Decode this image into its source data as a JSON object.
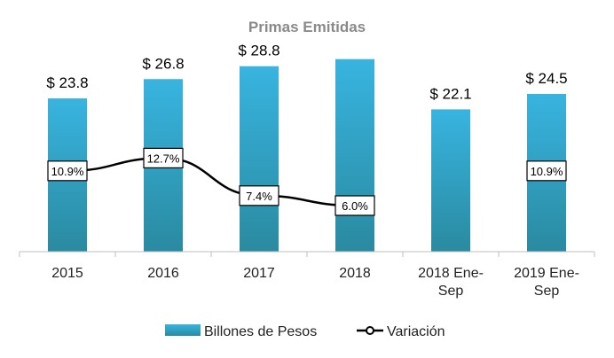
{
  "chart_data": {
    "type": "bar",
    "title": "Primas Emitidas",
    "categories": [
      "2015",
      "2016",
      "2017",
      "2018",
      "2018 Ene-Sep",
      "2019 Ene-Sep"
    ],
    "category_lines": [
      [
        "2015"
      ],
      [
        "2016"
      ],
      [
        "2017"
      ],
      [
        "2018"
      ],
      [
        "2018 Ene-",
        "Sep"
      ],
      [
        "2019 Ene-",
        "Sep"
      ]
    ],
    "series": [
      {
        "name": "Billones de Pesos",
        "type": "bar",
        "values": [
          23.8,
          26.8,
          28.8,
          29.9,
          22.1,
          24.5
        ],
        "labels": [
          "$ 23.8",
          "$ 26.8",
          "$ 28.8",
          "",
          "$ 22.1",
          "$ 24.5"
        ],
        "color_top": "#38b4e0",
        "color_bottom": "#2a8aa0"
      },
      {
        "name": "Variación",
        "type": "line",
        "values": [
          10.9,
          12.7,
          7.4,
          6.0,
          null,
          10.9
        ],
        "labels": [
          "10.9%",
          "12.7%",
          "7.4%",
          "6.0%",
          "",
          "10.9%"
        ],
        "connect": [
          true,
          true,
          true,
          true,
          false,
          false
        ],
        "color": "#000000"
      }
    ],
    "ylim": [
      0,
      30
    ],
    "y2lim": [
      0,
      18
    ],
    "grid": false,
    "legend": "bottom"
  }
}
